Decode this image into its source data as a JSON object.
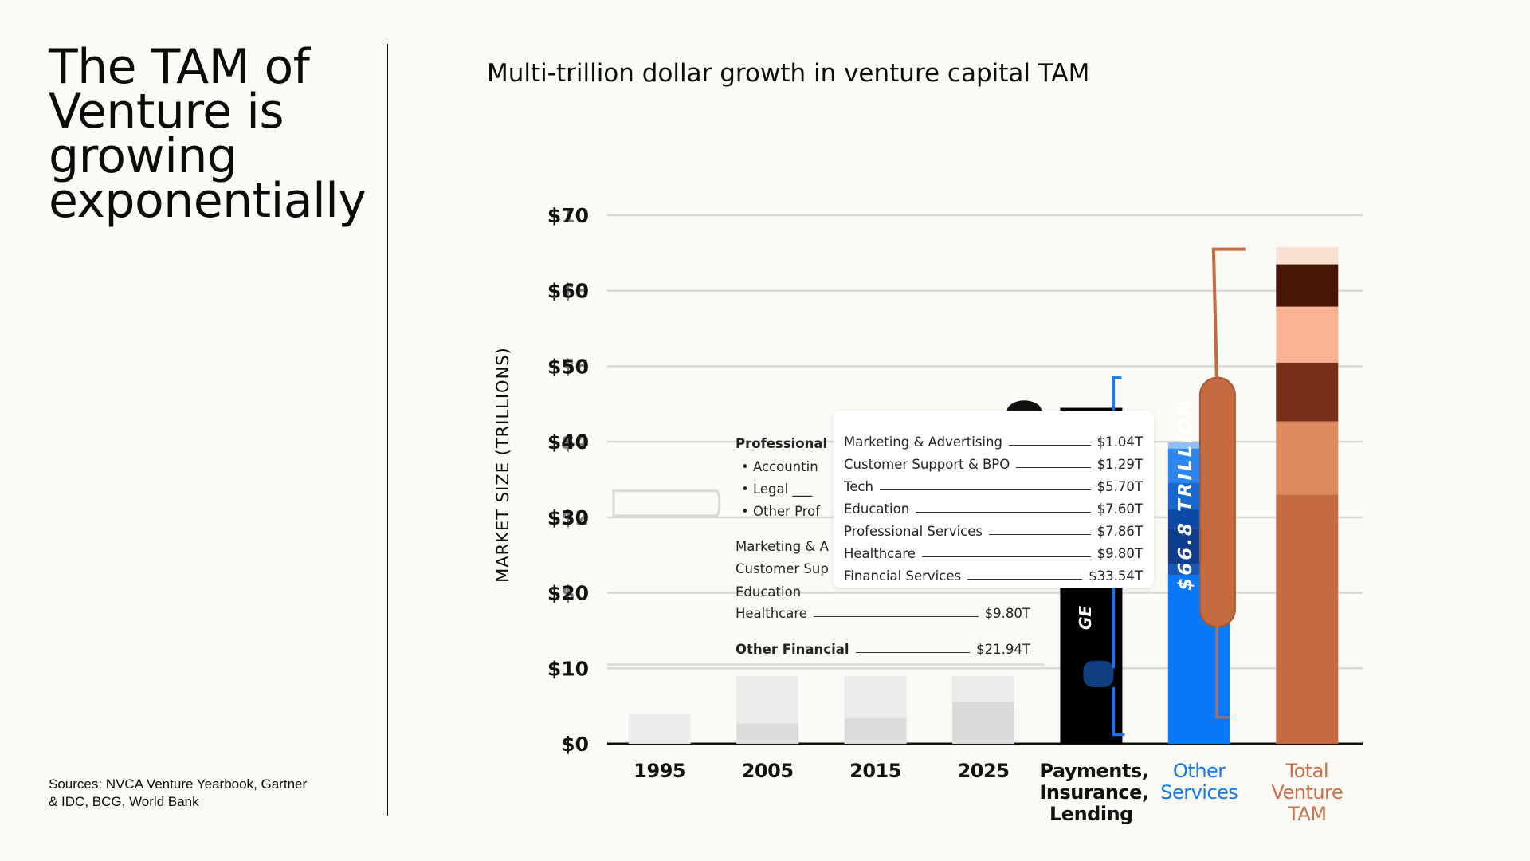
{
  "slide": {
    "title": "The TAM of Venture is growing exponentially",
    "subtitle": "Multi-trillion dollar growth in venture capital TAM",
    "sources": "Sources: NVCA Venture Yearbook, Gartner & IDC, BCG, World Bank"
  },
  "chart_data": {
    "type": "bar",
    "ylabel": "MARKET SIZE (TRILLIONS)",
    "y_ticks": [
      "$70",
      "$60",
      "$50",
      "$40",
      "$30",
      "$20",
      "$10",
      "$0"
    ],
    "ghost_ticks": [
      "$10",
      "$8",
      "$6",
      "$4",
      "$2",
      "$0"
    ],
    "ylim": [
      0,
      70
    ],
    "grid": true,
    "categories": [
      "1995",
      "2005",
      "2015",
      "2025",
      "Payments, Insurance, Lending",
      "Other Services",
      "Total Venture TAM"
    ],
    "category_colors": [
      "#111111",
      "#111111",
      "#111111",
      "#111111",
      "#111111",
      "#1478f0",
      "#c96f4a"
    ],
    "bars": [
      {
        "category": "1995",
        "segments": [
          {
            "value": 0.3,
            "color": "#e6e6e6"
          },
          {
            "value": 3.6,
            "color": "#ebebeb"
          }
        ]
      },
      {
        "category": "2005",
        "segments": [
          {
            "value": 2.7,
            "color": "#dcdcdc"
          },
          {
            "value": 6.3,
            "color": "#ebebeb"
          }
        ]
      },
      {
        "category": "2015",
        "segments": [
          {
            "value": 3.4,
            "color": "#dcdcdc"
          },
          {
            "value": 5.6,
            "color": "#ebebeb"
          }
        ]
      },
      {
        "category": "2025",
        "segments": [
          {
            "value": 5.5,
            "color": "#d9d9d9"
          },
          {
            "value": 3.5,
            "color": "#ebebeb"
          }
        ]
      },
      {
        "category": "Payments, Insurance, Lending",
        "segments": [
          {
            "value": 44.5,
            "color": "#000000"
          }
        ]
      },
      {
        "category": "Other Services",
        "segments": [
          {
            "value": 22.3,
            "color": "#0a78fa"
          },
          {
            "value": 1.5,
            "color": "#1558b8"
          },
          {
            "value": 4.8,
            "color": "#0e3d8c"
          },
          {
            "value": 2.5,
            "color": "#0c4aa5"
          },
          {
            "value": 3.5,
            "color": "#1668d0"
          },
          {
            "value": 4.5,
            "color": "#2a86f0"
          },
          {
            "value": 0.8,
            "color": "#8fbff5"
          }
        ]
      },
      {
        "category": "Total Venture TAM",
        "segments": [
          {
            "value": 33.0,
            "color": "#c46b42"
          },
          {
            "value": 9.7,
            "color": "#dd8a60"
          },
          {
            "value": 7.8,
            "color": "#7a2f18"
          },
          {
            "value": 7.4,
            "color": "#f9b493"
          },
          {
            "value": 5.6,
            "color": "#481605"
          },
          {
            "value": 2.3,
            "color": "#f8e0d2"
          }
        ]
      }
    ],
    "annotations": {
      "other_services_total": "$66.8 TRILLION",
      "payments_partial": "GE"
    }
  },
  "popup": {
    "rows": [
      {
        "label": "Marketing & Advertising",
        "value": "$1.04T"
      },
      {
        "label": "Customer Support & BPO",
        "value": "$1.29T"
      },
      {
        "label": "Tech",
        "value": "$5.70T"
      },
      {
        "label": "Education",
        "value": "$7.60T"
      },
      {
        "label": "Professional Services",
        "value": "$7.86T"
      },
      {
        "label": "Healthcare",
        "value": "$9.80T"
      },
      {
        "label": "Financial Services",
        "value": "$33.54T"
      }
    ]
  },
  "ghost_list": {
    "heading": "Professional",
    "bullets": [
      "Accountin",
      "Legal",
      "Other Prof"
    ],
    "partial": [
      "Marketing & A",
      "Customer Sup",
      "Education"
    ],
    "healthcare": {
      "label": "Healthcare",
      "value": "$9.80T"
    },
    "other_financial": {
      "label": "Other Financial",
      "value": "$21.94T"
    }
  }
}
